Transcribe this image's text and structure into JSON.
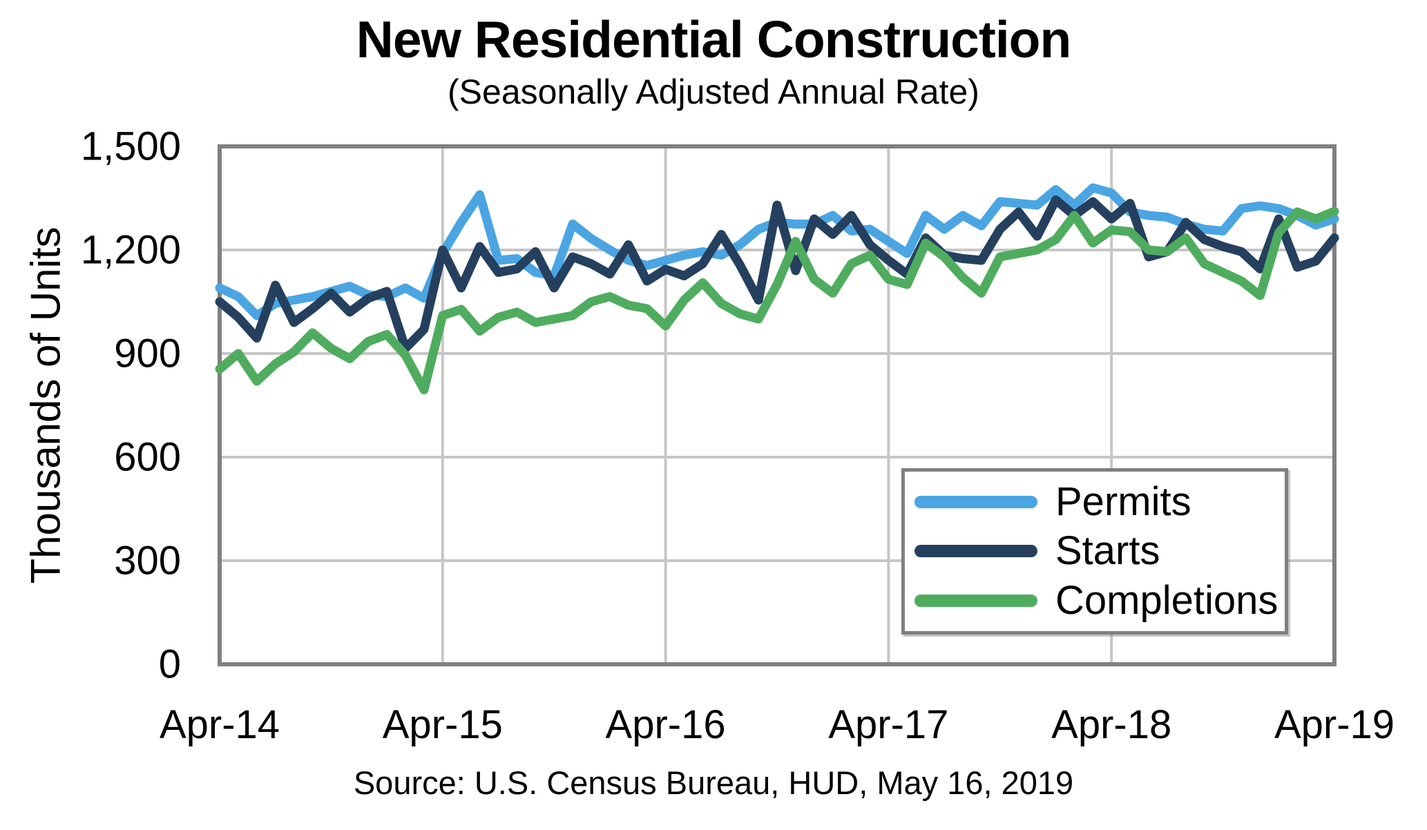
{
  "chart_data": {
    "type": "line",
    "title": "New Residential Construction",
    "subtitle": "(Seasonally Adjusted Annual Rate)",
    "ylabel": "Thousands of Units",
    "source": "Source:  U.S. Census Bureau, HUD, May 16, 2019",
    "ylim": [
      0,
      1500
    ],
    "y_gridline_step": 300,
    "grid": true,
    "legend_position": "inside-bottom-right",
    "y_tick_labels": [
      "0",
      "300",
      "600",
      "900",
      "1,200",
      "1,500"
    ],
    "x_tick_labels": [
      "Apr-14",
      "Apr-15",
      "Apr-16",
      "Apr-17",
      "Apr-18",
      "Apr-19"
    ],
    "months": [
      "Apr-14",
      "May-14",
      "Jun-14",
      "Jul-14",
      "Aug-14",
      "Sep-14",
      "Oct-14",
      "Nov-14",
      "Dec-14",
      "Jan-15",
      "Feb-15",
      "Mar-15",
      "Apr-15",
      "May-15",
      "Jun-15",
      "Jul-15",
      "Aug-15",
      "Sep-15",
      "Oct-15",
      "Nov-15",
      "Dec-15",
      "Jan-16",
      "Feb-16",
      "Mar-16",
      "Apr-16",
      "May-16",
      "Jun-16",
      "Jul-16",
      "Aug-16",
      "Sep-16",
      "Oct-16",
      "Nov-16",
      "Dec-16",
      "Jan-17",
      "Feb-17",
      "Mar-17",
      "Apr-17",
      "May-17",
      "Jun-17",
      "Jul-17",
      "Aug-17",
      "Sep-17",
      "Oct-17",
      "Nov-17",
      "Dec-17",
      "Jan-18",
      "Feb-18",
      "Mar-18",
      "Apr-18",
      "May-18",
      "Jun-18",
      "Jul-18",
      "Aug-18",
      "Sep-18",
      "Oct-18",
      "Nov-18",
      "Dec-18",
      "Jan-19",
      "Feb-19",
      "Mar-19",
      "Apr-19"
    ],
    "series": [
      {
        "name": "Permits",
        "color": "#4AA5E2",
        "values": [
          1090,
          1065,
          1010,
          1045,
          1055,
          1065,
          1080,
          1095,
          1070,
          1065,
          1090,
          1060,
          1190,
          1280,
          1360,
          1170,
          1175,
          1135,
          1125,
          1275,
          1233,
          1200,
          1170,
          1155,
          1170,
          1185,
          1195,
          1185,
          1215,
          1260,
          1280,
          1275,
          1275,
          1300,
          1255,
          1260,
          1225,
          1190,
          1300,
          1260,
          1300,
          1270,
          1340,
          1335,
          1330,
          1375,
          1330,
          1380,
          1365,
          1310,
          1300,
          1295,
          1275,
          1260,
          1255,
          1320,
          1328,
          1320,
          1300,
          1272,
          1290
        ]
      },
      {
        "name": "Starts",
        "color": "#25405E",
        "values": [
          1050,
          1005,
          945,
          1098,
          990,
          1030,
          1075,
          1020,
          1060,
          1080,
          915,
          970,
          1200,
          1090,
          1210,
          1135,
          1145,
          1195,
          1090,
          1180,
          1160,
          1130,
          1215,
          1110,
          1144,
          1125,
          1160,
          1245,
          1157,
          1055,
          1330,
          1140,
          1290,
          1245,
          1300,
          1215,
          1170,
          1130,
          1235,
          1185,
          1175,
          1170,
          1260,
          1310,
          1240,
          1345,
          1300,
          1340,
          1290,
          1335,
          1180,
          1195,
          1280,
          1230,
          1210,
          1195,
          1145,
          1290,
          1150,
          1168,
          1235
        ]
      },
      {
        "name": "Completions",
        "color": "#4FAC5F",
        "values": [
          855,
          900,
          820,
          870,
          905,
          960,
          915,
          885,
          935,
          955,
          895,
          795,
          1010,
          1028,
          965,
          1005,
          1020,
          990,
          1000,
          1010,
          1050,
          1065,
          1040,
          1030,
          980,
          1055,
          1105,
          1045,
          1015,
          1000,
          1100,
          1225,
          1115,
          1075,
          1160,
          1185,
          1115,
          1100,
          1220,
          1180,
          1120,
          1075,
          1180,
          1190,
          1200,
          1230,
          1300,
          1220,
          1258,
          1253,
          1200,
          1195,
          1235,
          1160,
          1135,
          1110,
          1068,
          1250,
          1310,
          1290,
          1312
        ]
      }
    ],
    "colors": {
      "grid": "#C6C6C6",
      "plot_border": "#808080",
      "text": "#000000",
      "background": "#FFFFFF"
    }
  }
}
